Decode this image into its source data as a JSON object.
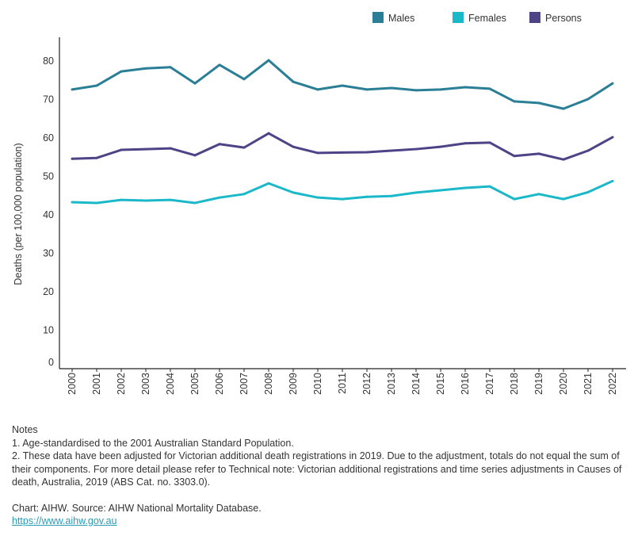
{
  "chart_data": {
    "type": "line",
    "title": "",
    "xlabel": "",
    "ylabel": "Deaths (per 100,000 population)",
    "ylim": [
      0,
      85
    ],
    "yticks": [
      0,
      10,
      20,
      30,
      40,
      50,
      60,
      70,
      80
    ],
    "grid": false,
    "legend_position": "top-right",
    "x": [
      "2000",
      "2001",
      "2002",
      "2003",
      "2004",
      "2005",
      "2006",
      "2007",
      "2008",
      "2009",
      "2010",
      "2011",
      "2012",
      "2013",
      "2014",
      "2015",
      "2016",
      "2017",
      "2018",
      "2019",
      "2020",
      "2021",
      "2022"
    ],
    "series": [
      {
        "name": "Males",
        "color": "#2a7f96",
        "values": [
          72.6,
          73.6,
          77.3,
          78.1,
          78.4,
          74.2,
          79.0,
          75.3,
          80.2,
          74.6,
          72.6,
          73.6,
          72.6,
          73.0,
          72.4,
          72.6,
          73.2,
          72.8,
          69.5,
          69.1,
          67.6,
          70.1,
          74.2
        ]
      },
      {
        "name": "Females",
        "color": "#1ab8c8",
        "values": [
          43.3,
          43.1,
          43.9,
          43.7,
          43.9,
          43.1,
          44.5,
          45.4,
          48.2,
          45.8,
          44.5,
          44.1,
          44.7,
          44.9,
          45.8,
          46.4,
          47.0,
          47.4,
          44.1,
          45.4,
          44.1,
          45.9,
          48.8
        ]
      },
      {
        "name": "Persons",
        "color": "#4f4387",
        "values": [
          54.6,
          54.8,
          56.9,
          57.1,
          57.3,
          55.5,
          58.4,
          57.5,
          61.2,
          57.7,
          56.1,
          56.2,
          56.3,
          56.7,
          57.1,
          57.7,
          58.6,
          58.8,
          55.3,
          55.9,
          54.4,
          56.7,
          60.2
        ]
      }
    ]
  },
  "notes": {
    "heading": "Notes",
    "lines": [
      "1. Age-standardised to the 2001 Australian Standard Population.",
      "2. These data have been adjusted for Victorian additional death registrations in 2019. Due to the adjustment, totals do not equal the sum of their components. For more detail please refer to Technical note: Victorian additional registrations and time series adjustments in Causes of death, Australia, 2019 (ABS Cat. no. 3303.0)."
    ],
    "source": "Chart: AIHW.  Source: AIHW National Mortality Database.",
    "link": "https://www.aihw.gov.au"
  }
}
